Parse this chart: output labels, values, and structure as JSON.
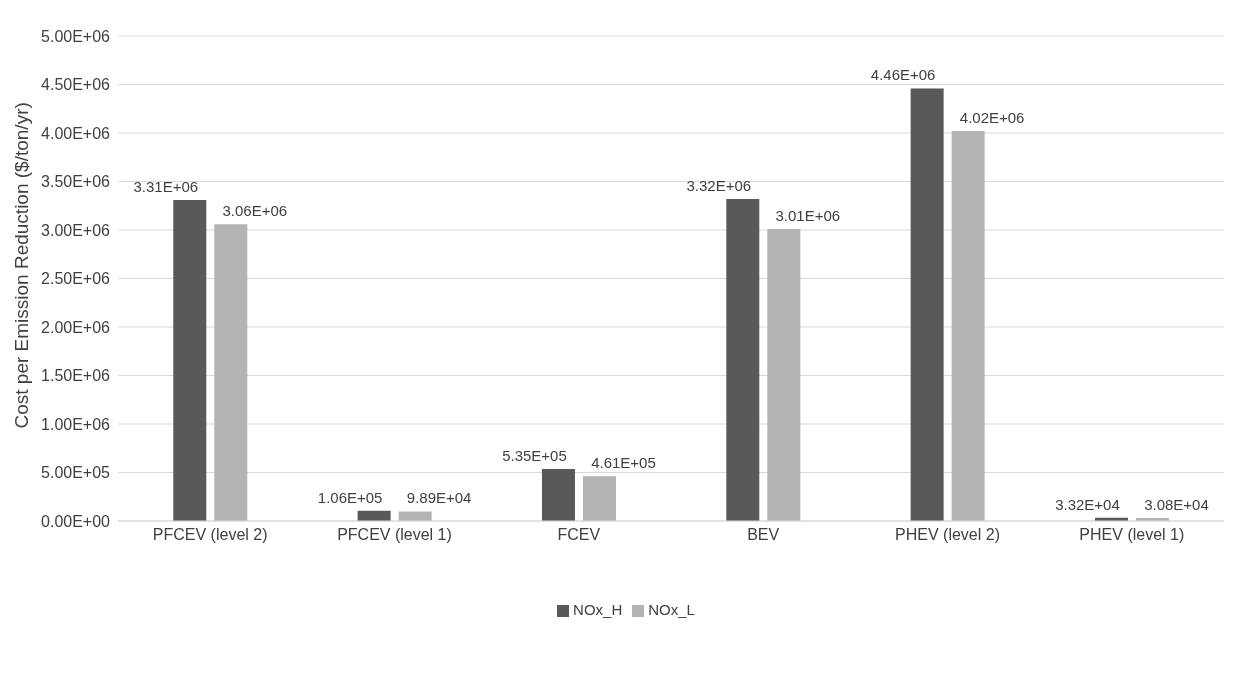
{
  "chart_data": {
    "type": "bar",
    "ylabel": "Cost per Emission Reduction ($/ton/yr)",
    "categories": [
      "PFCEV (level 2)",
      "PFCEV (level 1)",
      "FCEV",
      "BEV",
      "PHEV (level 2)",
      "PHEV (level 1)"
    ],
    "series": [
      {
        "name": "NOx_H",
        "color": "#595959",
        "values": [
          3310000,
          106000,
          535000,
          3320000,
          4460000,
          33200
        ],
        "value_labels": [
          "3.31E+06",
          "1.06E+05",
          "5.35E+05",
          "3.32E+06",
          "4.46E+06",
          "3.32E+04"
        ]
      },
      {
        "name": "NOx_L",
        "color": "#b3b3b3",
        "values": [
          3060000,
          98900,
          461000,
          3010000,
          4020000,
          30800
        ],
        "value_labels": [
          "3.06E+06",
          "9.89E+04",
          "4.61E+05",
          "3.01E+06",
          "4.02E+06",
          "3.08E+04"
        ]
      }
    ],
    "ylim": [
      0,
      5000000
    ],
    "yticks": [
      {
        "value": 0,
        "label": "0.00E+00"
      },
      {
        "value": 500000,
        "label": "5.00E+05"
      },
      {
        "value": 1000000,
        "label": "1.00E+06"
      },
      {
        "value": 1500000,
        "label": "1.50E+06"
      },
      {
        "value": 2000000,
        "label": "2.00E+06"
      },
      {
        "value": 2500000,
        "label": "2.50E+06"
      },
      {
        "value": 3000000,
        "label": "3.00E+06"
      },
      {
        "value": 3500000,
        "label": "3.50E+06"
      },
      {
        "value": 4000000,
        "label": "4.00E+06"
      },
      {
        "value": 4500000,
        "label": "4.50E+06"
      },
      {
        "value": 5000000,
        "label": "5.00E+06"
      }
    ],
    "grid": "y",
    "legend": "bottom"
  }
}
